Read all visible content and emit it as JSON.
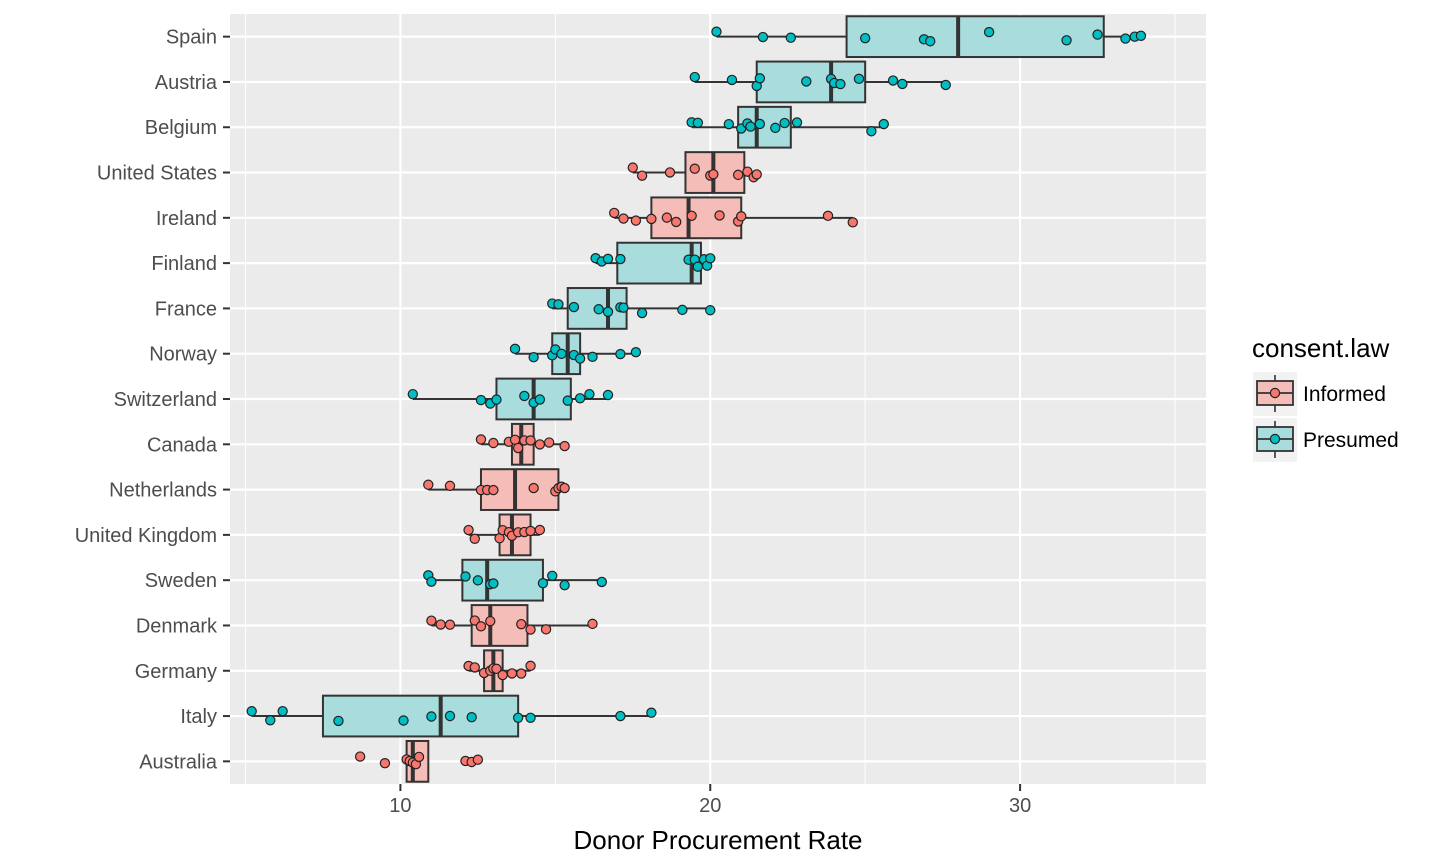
{
  "chart_data": {
    "type": "boxplot",
    "title": "",
    "xlabel": "Donor Procurement Rate",
    "ylabel": "",
    "xlim": [
      4.5,
      36
    ],
    "x_ticks": [
      10,
      20,
      30
    ],
    "grid": true,
    "legend_position": "right",
    "legend": {
      "title": "consent.law",
      "entries": [
        {
          "name": "Informed",
          "color": "#f8766d",
          "box_fill": "#f4bdb8"
        },
        {
          "name": "Presumed",
          "color": "#00bfc4",
          "box_fill": "#a9dcdd"
        }
      ]
    },
    "countries": [
      {
        "name": "Spain",
        "group": "Presumed",
        "min": 20.2,
        "q1": 24.4,
        "median": 28.0,
        "q3": 32.7,
        "max": 33.9,
        "points": [
          20.2,
          21.7,
          22.6,
          25.0,
          26.9,
          27.1,
          29.0,
          31.5,
          32.5,
          33.4,
          33.7,
          33.9
        ]
      },
      {
        "name": "Austria",
        "group": "Presumed",
        "min": 19.5,
        "q1": 21.5,
        "median": 23.9,
        "q3": 25.0,
        "max": 27.6,
        "points": [
          19.5,
          20.7,
          21.5,
          21.6,
          23.1,
          23.9,
          24.0,
          24.2,
          24.8,
          25.9,
          26.2,
          27.6
        ]
      },
      {
        "name": "Belgium",
        "group": "Presumed",
        "min": 19.4,
        "q1": 20.9,
        "median": 21.5,
        "q3": 22.6,
        "max": 25.6,
        "points": [
          19.4,
          19.6,
          20.6,
          21.0,
          21.2,
          21.3,
          21.6,
          22.1,
          22.4,
          22.8,
          25.2,
          25.6
        ]
      },
      {
        "name": "United States",
        "group": "Informed",
        "min": 17.5,
        "q1": 19.2,
        "median": 20.1,
        "q3": 21.1,
        "max": 21.5,
        "points": [
          17.5,
          17.8,
          18.7,
          19.5,
          20.0,
          20.1,
          20.9,
          21.2,
          21.4,
          21.5
        ]
      },
      {
        "name": "Ireland",
        "group": "Informed",
        "min": 16.9,
        "q1": 18.1,
        "median": 19.3,
        "q3": 21.0,
        "max": 24.6,
        "points": [
          16.9,
          17.2,
          17.6,
          18.1,
          18.6,
          18.9,
          19.4,
          20.3,
          20.9,
          21.0,
          23.8,
          24.6
        ]
      },
      {
        "name": "Finland",
        "group": "Presumed",
        "min": 16.3,
        "q1": 17.0,
        "median": 19.4,
        "q3": 19.7,
        "max": 20.0,
        "points": [
          16.3,
          16.5,
          16.7,
          17.1,
          19.3,
          19.5,
          19.6,
          19.8,
          19.9,
          20.0
        ]
      },
      {
        "name": "France",
        "group": "Presumed",
        "min": 14.9,
        "q1": 15.4,
        "median": 16.7,
        "q3": 17.3,
        "max": 20.0,
        "points": [
          14.9,
          15.1,
          15.6,
          16.4,
          16.7,
          17.1,
          17.2,
          17.8,
          19.1,
          20.0
        ]
      },
      {
        "name": "Norway",
        "group": "Presumed",
        "min": 13.7,
        "q1": 14.9,
        "median": 15.4,
        "q3": 15.8,
        "max": 17.6,
        "points": [
          13.7,
          14.3,
          14.9,
          15.0,
          15.2,
          15.6,
          15.8,
          16.2,
          17.1,
          17.6
        ]
      },
      {
        "name": "Switzerland",
        "group": "Presumed",
        "min": 10.4,
        "q1": 13.1,
        "median": 14.3,
        "q3": 15.5,
        "max": 16.7,
        "points": [
          10.4,
          12.6,
          12.9,
          13.1,
          14.0,
          14.3,
          14.5,
          15.4,
          15.8,
          16.1,
          16.7
        ]
      },
      {
        "name": "Canada",
        "group": "Informed",
        "min": 12.6,
        "q1": 13.6,
        "median": 13.9,
        "q3": 14.3,
        "max": 15.3,
        "points": [
          12.6,
          13.0,
          13.5,
          13.7,
          13.8,
          14.0,
          14.2,
          14.5,
          14.8,
          15.3
        ]
      },
      {
        "name": "Netherlands",
        "group": "Informed",
        "min": 10.9,
        "q1": 12.6,
        "median": 13.7,
        "q3": 15.1,
        "max": 15.3,
        "points": [
          10.9,
          11.6,
          12.6,
          12.8,
          13.0,
          14.3,
          15.0,
          15.1,
          15.2,
          15.3
        ]
      },
      {
        "name": "United Kingdom",
        "group": "Informed",
        "min": 12.2,
        "q1": 13.2,
        "median": 13.6,
        "q3": 14.2,
        "max": 14.5,
        "points": [
          12.2,
          12.4,
          13.2,
          13.3,
          13.5,
          13.6,
          13.8,
          14.0,
          14.2,
          14.5
        ]
      },
      {
        "name": "Sweden",
        "group": "Presumed",
        "min": 10.9,
        "q1": 12.0,
        "median": 12.8,
        "q3": 14.6,
        "max": 16.5,
        "points": [
          10.9,
          11.0,
          12.1,
          12.5,
          12.9,
          13.0,
          14.6,
          14.9,
          15.3,
          16.5
        ]
      },
      {
        "name": "Denmark",
        "group": "Informed",
        "min": 11.0,
        "q1": 12.3,
        "median": 12.9,
        "q3": 14.1,
        "max": 16.2,
        "points": [
          11.0,
          11.3,
          11.6,
          12.4,
          12.6,
          12.9,
          13.9,
          14.2,
          14.7,
          16.2
        ]
      },
      {
        "name": "Germany",
        "group": "Informed",
        "min": 12.2,
        "q1": 12.7,
        "median": 13.0,
        "q3": 13.3,
        "max": 14.2,
        "points": [
          12.2,
          12.4,
          12.7,
          12.9,
          13.0,
          13.1,
          13.3,
          13.6,
          13.9,
          14.2
        ]
      },
      {
        "name": "Italy",
        "group": "Presumed",
        "min": 5.2,
        "q1": 7.5,
        "median": 11.3,
        "q3": 13.8,
        "max": 18.1,
        "points": [
          5.2,
          5.8,
          6.2,
          8.0,
          10.1,
          11.0,
          11.6,
          12.3,
          13.8,
          14.2,
          17.1,
          18.1
        ]
      },
      {
        "name": "Australia",
        "group": "Informed",
        "min": 10.2,
        "q1": 10.2,
        "median": 10.4,
        "q3": 10.9,
        "max": 10.9,
        "points": [
          8.7,
          9.5,
          10.2,
          10.3,
          10.4,
          10.5,
          10.6,
          12.1,
          12.3,
          12.5
        ]
      }
    ]
  }
}
